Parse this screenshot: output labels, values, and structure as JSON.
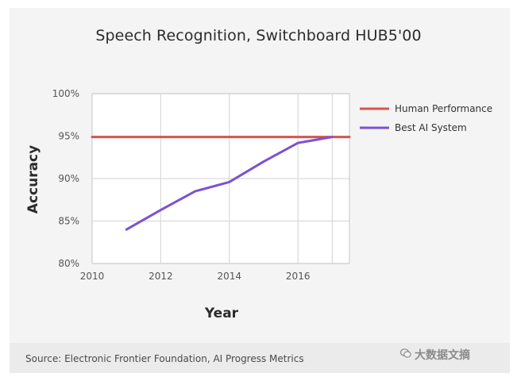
{
  "chart_data": {
    "type": "line",
    "title": "Speech Recognition, Switchboard HUB5'00",
    "xlabel": "Year",
    "ylabel": "Accuracy",
    "xlim": [
      2010,
      2017.5
    ],
    "ylim": [
      80,
      100
    ],
    "x_ticks": [
      2010,
      2012,
      2014,
      2016
    ],
    "x_tick_labels": [
      "2010",
      "2012",
      "2014",
      "2016"
    ],
    "y_ticks": [
      80,
      85,
      90,
      95,
      100
    ],
    "y_tick_labels": [
      "80%",
      "85%",
      "90%",
      "95%",
      "100%"
    ],
    "grid": true,
    "legend_position": "right",
    "series": [
      {
        "name": "Human Performance",
        "color": "#d9534f",
        "x": [
          2010,
          2017.5
        ],
        "values": [
          94.9,
          94.9
        ]
      },
      {
        "name": "Best AI System",
        "color": "#7b52d4",
        "x": [
          2011,
          2012,
          2013,
          2014,
          2015,
          2016,
          2017
        ],
        "values": [
          84.0,
          86.3,
          88.5,
          89.6,
          92.0,
          94.2,
          94.9
        ]
      }
    ]
  },
  "footer": {
    "source": "Source: Electronic Frontier Foundation, AI Progress Metrics",
    "watermark": "大数据文摘"
  }
}
